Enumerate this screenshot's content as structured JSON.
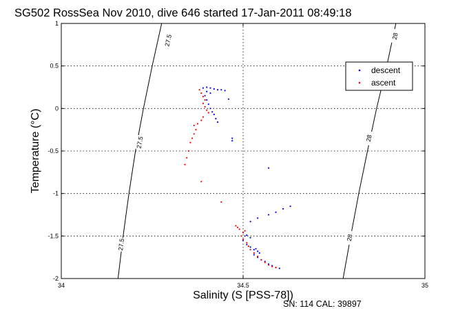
{
  "chart_data": {
    "type": "scatter",
    "title": "SG502 RossSea Nov 2010, dive 646 started 17-Jan-2011 08:49:18",
    "xlabel": "Salinity (S [PSS-78])",
    "ylabel": "Temperature (°C)",
    "xlim": [
      34,
      35
    ],
    "ylim": [
      -2,
      1
    ],
    "x_ticks": [
      "34",
      "34.5",
      "35"
    ],
    "y_ticks": [
      "1",
      "0.5",
      "0",
      "-0.5",
      "-1",
      "-1.5",
      "-2"
    ],
    "grid": true,
    "legend_position": "top-right",
    "footnote": "SN: 114  CAL: 39897",
    "isopycnals": [
      {
        "label": "27.5",
        "points": [
          [
            34.276,
            1.0
          ],
          [
            34.25,
            0.5
          ],
          [
            34.226,
            0.0
          ],
          [
            34.204,
            -0.5
          ],
          [
            34.186,
            -1.0
          ],
          [
            34.17,
            -1.5
          ],
          [
            34.156,
            -2.0
          ]
        ],
        "label_positions": [
          [
            34.294,
            0.8
          ],
          [
            34.216,
            -0.4
          ],
          [
            34.165,
            -1.6
          ]
        ]
      },
      {
        "label": "28",
        "points": [
          [
            34.92,
            1.0
          ],
          [
            34.895,
            0.5
          ],
          [
            34.867,
            0.0
          ],
          [
            34.842,
            -0.5
          ],
          [
            34.818,
            -1.0
          ],
          [
            34.796,
            -1.5
          ],
          [
            34.775,
            -2.0
          ]
        ],
        "label_positions": [
          [
            34.918,
            0.85
          ],
          [
            34.846,
            -0.35
          ],
          [
            34.793,
            -1.52
          ]
        ]
      }
    ],
    "series": [
      {
        "name": "descent",
        "color": "#0000ff",
        "points": [
          [
            34.39,
            0.24
          ],
          [
            34.4,
            0.25
          ],
          [
            34.41,
            0.24
          ],
          [
            34.42,
            0.23
          ],
          [
            34.43,
            0.22
          ],
          [
            34.44,
            0.22
          ],
          [
            34.45,
            0.21
          ],
          [
            34.4,
            0.2
          ],
          [
            34.41,
            0.18
          ],
          [
            34.395,
            0.15
          ],
          [
            34.4,
            0.1
          ],
          [
            34.405,
            0.05
          ],
          [
            34.41,
            0.0
          ],
          [
            34.415,
            -0.04
          ],
          [
            34.42,
            -0.07
          ],
          [
            34.425,
            -0.12
          ],
          [
            34.43,
            -0.16
          ],
          [
            34.46,
            0.11
          ],
          [
            34.47,
            -0.35
          ],
          [
            34.47,
            -0.38
          ],
          [
            34.57,
            -0.7
          ],
          [
            34.52,
            -1.33
          ],
          [
            34.54,
            -1.29
          ],
          [
            34.57,
            -1.25
          ],
          [
            34.59,
            -1.22
          ],
          [
            34.61,
            -1.18
          ],
          [
            34.63,
            -1.15
          ],
          [
            34.5,
            -1.46
          ],
          [
            34.51,
            -1.49
          ],
          [
            34.52,
            -1.52
          ],
          [
            34.5,
            -1.55
          ],
          [
            34.51,
            -1.6
          ],
          [
            34.52,
            -1.63
          ],
          [
            34.53,
            -1.66
          ],
          [
            34.54,
            -1.68
          ],
          [
            34.53,
            -1.72
          ],
          [
            34.54,
            -1.75
          ],
          [
            34.55,
            -1.78
          ],
          [
            34.56,
            -1.8
          ],
          [
            34.57,
            -1.83
          ],
          [
            34.58,
            -1.85
          ],
          [
            34.59,
            -1.87
          ],
          [
            34.6,
            -1.88
          ],
          [
            34.535,
            -1.65
          ],
          [
            34.545,
            -1.7
          ],
          [
            34.505,
            -1.5
          ]
        ]
      },
      {
        "name": "ascent",
        "color": "#ff0000",
        "points": [
          [
            34.38,
            0.22
          ],
          [
            34.385,
            0.18
          ],
          [
            34.39,
            0.14
          ],
          [
            34.395,
            0.1
          ],
          [
            34.39,
            0.06
          ],
          [
            34.395,
            0.02
          ],
          [
            34.4,
            -0.02
          ],
          [
            34.405,
            -0.05
          ],
          [
            34.39,
            -0.1
          ],
          [
            34.385,
            -0.14
          ],
          [
            34.375,
            -0.18
          ],
          [
            34.365,
            -0.2
          ],
          [
            34.37,
            -0.25
          ],
          [
            34.365,
            -0.3
          ],
          [
            34.36,
            -0.35
          ],
          [
            34.355,
            -0.4
          ],
          [
            34.35,
            -0.5
          ],
          [
            34.345,
            -0.58
          ],
          [
            34.34,
            -0.66
          ],
          [
            34.385,
            -0.86
          ],
          [
            34.44,
            -1.1
          ],
          [
            34.48,
            -1.38
          ],
          [
            34.49,
            -1.42
          ],
          [
            34.5,
            -1.46
          ],
          [
            34.495,
            -1.5
          ],
          [
            34.5,
            -1.54
          ],
          [
            34.51,
            -1.58
          ],
          [
            34.515,
            -1.62
          ],
          [
            34.52,
            -1.66
          ],
          [
            34.53,
            -1.7
          ],
          [
            34.54,
            -1.74
          ],
          [
            34.55,
            -1.78
          ],
          [
            34.56,
            -1.81
          ],
          [
            34.57,
            -1.84
          ],
          [
            34.58,
            -1.86
          ],
          [
            34.59,
            -1.87
          ],
          [
            34.505,
            -1.44
          ],
          [
            34.485,
            -1.4
          ]
        ]
      }
    ]
  }
}
